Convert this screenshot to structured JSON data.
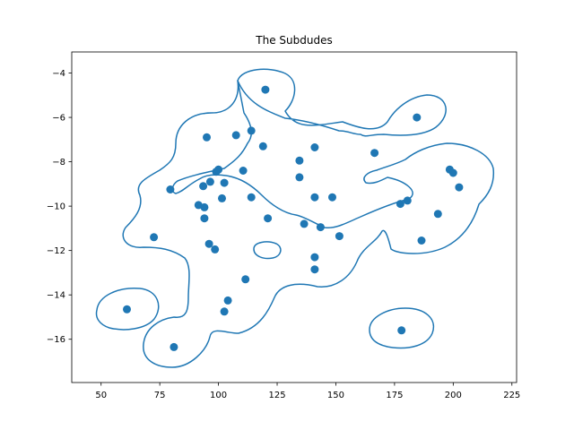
{
  "chart_data": {
    "type": "scatter",
    "title": "The Subdudes",
    "xlabel": "",
    "ylabel": "",
    "xlim": [
      37.5,
      227
    ],
    "ylim": [
      -17.95,
      -3.05
    ],
    "grid": false,
    "x_ticks": [
      50,
      75,
      100,
      125,
      150,
      175,
      200,
      225
    ],
    "x_tick_labels": [
      "50",
      "75",
      "100",
      "125",
      "150",
      "175",
      "200",
      "225"
    ],
    "y_ticks": [
      -4,
      -6,
      -8,
      -10,
      -12,
      -14,
      -16
    ],
    "y_tick_labels": [
      "−4",
      "−6",
      "−8",
      "−10",
      "−12",
      "−14",
      "−16"
    ],
    "series": [
      {
        "color": "#1f77b4",
        "points": [
          [
            61,
            -14.65
          ],
          [
            72.5,
            -11.4
          ],
          [
            79.5,
            -9.25
          ],
          [
            81,
            -16.35
          ],
          [
            91.5,
            -9.95
          ],
          [
            93.5,
            -9.1
          ],
          [
            94,
            -10.05
          ],
          [
            94,
            -10.55
          ],
          [
            95,
            -6.9
          ],
          [
            96,
            -11.7
          ],
          [
            96.5,
            -8.9
          ],
          [
            98.5,
            -11.95
          ],
          [
            99,
            -8.45
          ],
          [
            100,
            -8.35
          ],
          [
            101.5,
            -9.65
          ],
          [
            102.5,
            -8.95
          ],
          [
            102.5,
            -14.75
          ],
          [
            104,
            -14.25
          ],
          [
            107.5,
            -6.8
          ],
          [
            110.5,
            -8.4
          ],
          [
            111.5,
            -13.3
          ],
          [
            114,
            -6.6
          ],
          [
            114,
            -9.6
          ],
          [
            119,
            -7.3
          ],
          [
            120,
            -4.75
          ],
          [
            121,
            -10.55
          ],
          [
            134.5,
            -7.95
          ],
          [
            134.5,
            -8.7
          ],
          [
            136.5,
            -10.8
          ],
          [
            141,
            -7.35
          ],
          [
            141,
            -9.6
          ],
          [
            141,
            -12.3
          ],
          [
            141,
            -12.85
          ],
          [
            143.5,
            -10.95
          ],
          [
            148.5,
            -9.6
          ],
          [
            151.5,
            -11.35
          ],
          [
            166.5,
            -7.6
          ],
          [
            177.5,
            -9.9
          ],
          [
            178,
            -15.6
          ],
          [
            180.5,
            -9.75
          ],
          [
            184.5,
            -6
          ],
          [
            186.5,
            -11.55
          ],
          [
            193.5,
            -10.35
          ],
          [
            198.5,
            -8.35
          ],
          [
            200,
            -8.5
          ],
          [
            202.5,
            -9.15
          ]
        ]
      }
    ]
  }
}
